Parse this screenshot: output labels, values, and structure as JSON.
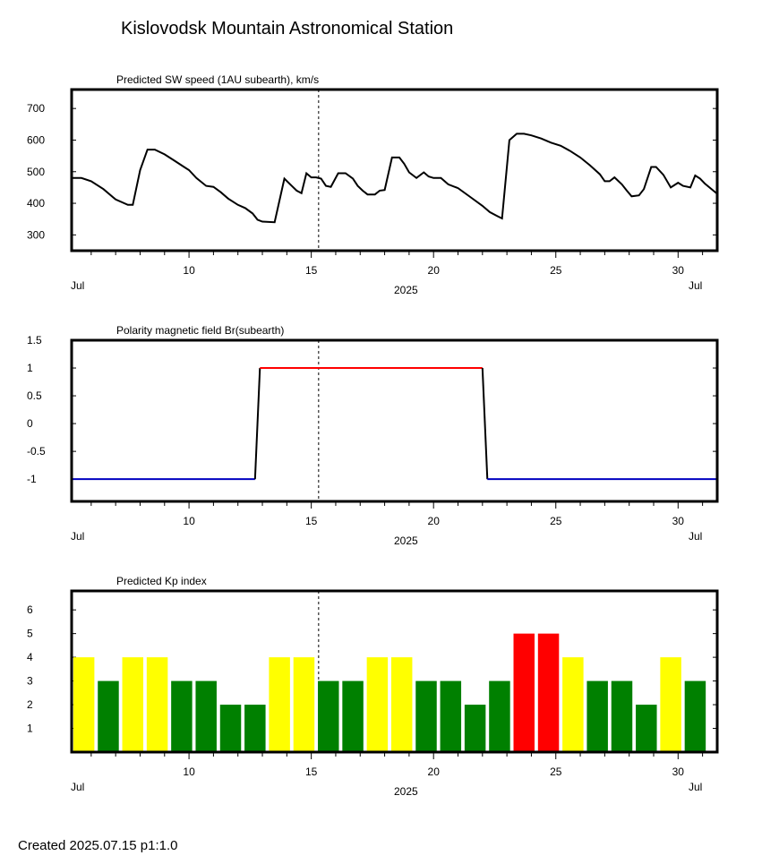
{
  "page": {
    "title": "Kislovodsk Mountain Astronomical Station",
    "footer": "Created  2025.07.15    p1:1.0"
  },
  "colors": {
    "yellow": "#ffff00",
    "green": "#008000",
    "red": "#ff0000",
    "polarity_positive": "#ff0000",
    "polarity_negative": "#0000c0",
    "speed_line": "#000000"
  },
  "chart_data": [
    {
      "type": "line",
      "title": "Predicted SW speed (1AU subearth), km/s",
      "xlabel": "2025",
      "ylabel": "",
      "x_range": [
        5.2,
        31.6
      ],
      "ylim": [
        250,
        760
      ],
      "y_ticks": [
        300,
        400,
        500,
        600,
        700
      ],
      "x_ticks": [
        10,
        15,
        20,
        25,
        30
      ],
      "x_edge_labels": [
        "Jul",
        "Jul"
      ],
      "marker_line_x": 15.3,
      "series": [
        {
          "x": [
            5.2,
            5.6,
            6.0,
            6.5,
            7.0,
            7.5,
            7.7,
            8.0,
            8.3,
            8.6,
            9.0,
            9.4,
            9.8,
            10.0,
            10.3,
            10.7,
            11.0,
            11.3,
            11.6,
            12.0,
            12.3,
            12.6,
            12.8,
            13.0,
            13.5,
            13.9,
            14.2,
            14.4,
            14.6,
            14.8,
            15.0,
            15.2,
            15.4,
            15.6,
            15.8,
            16.1,
            16.4,
            16.7,
            16.9,
            17.1,
            17.3,
            17.6,
            17.8,
            18.0,
            18.3,
            18.6,
            18.8,
            19.0,
            19.3,
            19.6,
            19.8,
            20.0,
            20.3,
            20.6,
            21.0,
            21.5,
            22.0,
            22.3,
            22.6,
            22.8,
            23.1,
            23.4,
            23.7,
            24.0,
            24.4,
            24.8,
            25.2,
            25.6,
            26.0,
            26.4,
            26.8,
            27.0,
            27.2,
            27.4,
            27.7,
            27.9,
            28.1,
            28.4,
            28.6,
            28.9,
            29.1,
            29.4,
            29.7,
            30.0,
            30.2,
            30.5,
            30.7,
            30.9,
            31.1,
            31.6
          ],
          "values": [
            480,
            480,
            470,
            445,
            412,
            395,
            395,
            505,
            570,
            570,
            555,
            535,
            515,
            505,
            480,
            455,
            452,
            435,
            415,
            395,
            385,
            368,
            348,
            342,
            340,
            478,
            455,
            440,
            432,
            495,
            482,
            482,
            478,
            455,
            452,
            495,
            495,
            478,
            455,
            440,
            428,
            428,
            440,
            442,
            545,
            545,
            525,
            498,
            480,
            498,
            485,
            480,
            480,
            460,
            448,
            420,
            392,
            372,
            360,
            352,
            600,
            620,
            620,
            615,
            605,
            592,
            582,
            565,
            545,
            520,
            492,
            470,
            470,
            482,
            460,
            440,
            422,
            425,
            445,
            515,
            515,
            490,
            450,
            465,
            455,
            450,
            488,
            478,
            462,
            430
          ]
        }
      ]
    },
    {
      "type": "line",
      "title": "Polarity magnetic field  Br(subearth)",
      "xlabel": "2025",
      "ylabel": "",
      "x_range": [
        5.2,
        31.6
      ],
      "ylim": [
        -1.4,
        1.5
      ],
      "y_ticks": [
        1.5,
        1,
        0.5,
        0,
        -0.5,
        -1
      ],
      "y_tick_labels": [
        "1.5",
        "1",
        "0.5",
        "0",
        "-0.5",
        "-1"
      ],
      "x_ticks": [
        10,
        15,
        20,
        25,
        30
      ],
      "x_edge_labels": [
        "Jul",
        "Jul"
      ],
      "marker_line_x": 15.3,
      "series": [
        {
          "x": [
            5.2,
            12.7,
            12.9,
            22.0,
            22.2,
            31.6
          ],
          "values": [
            -1,
            -1,
            1,
            1,
            -1,
            -1
          ]
        }
      ]
    },
    {
      "type": "bar",
      "title": "Predicted Kp index",
      "xlabel": "2025",
      "ylabel": "",
      "x_range": [
        5.2,
        31.6
      ],
      "ylim": [
        0,
        6.8
      ],
      "y_ticks": [
        1,
        2,
        3,
        4,
        5,
        6
      ],
      "x_ticks": [
        10,
        15,
        20,
        25,
        30
      ],
      "x_edge_labels": [
        "Jul",
        "Jul"
      ],
      "marker_line_x": 15.3,
      "x": [
        5.7,
        6.7,
        7.7,
        8.7,
        9.7,
        10.7,
        11.7,
        12.7,
        13.7,
        14.7,
        15.7,
        16.7,
        17.7,
        18.7,
        19.7,
        20.7,
        21.7,
        22.7,
        23.7,
        24.7,
        25.7,
        26.7,
        27.7,
        28.7,
        29.7,
        30.7
      ],
      "values": [
        4,
        3,
        4,
        4,
        3,
        3,
        2,
        2,
        4,
        4,
        3,
        3,
        4,
        4,
        3,
        3,
        2,
        3,
        5,
        5,
        4,
        3,
        3,
        2,
        4,
        3
      ]
    }
  ]
}
